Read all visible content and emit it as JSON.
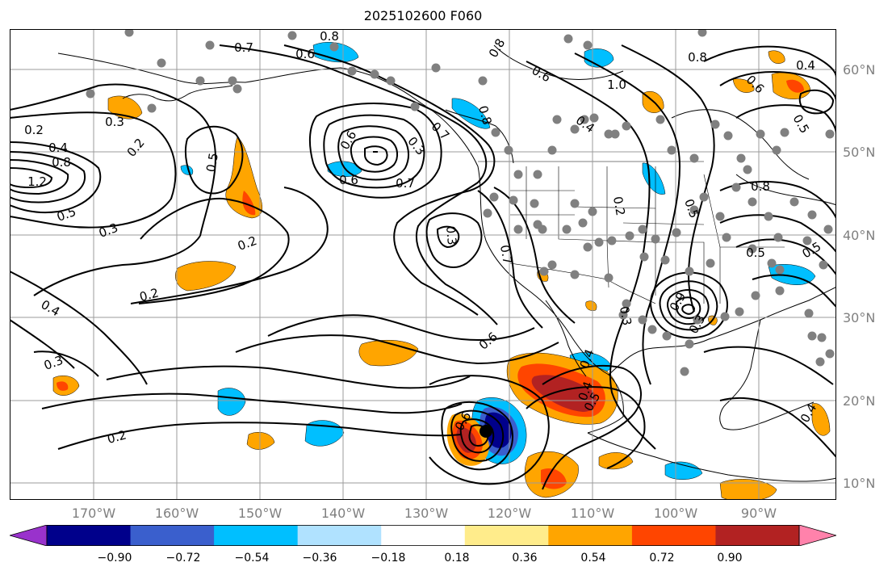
{
  "title": "2025102600 F060",
  "latitude_labels": [
    "60°N",
    "50°N",
    "40°N",
    "30°N",
    "20°N",
    "10°N"
  ],
  "longitude_labels": [
    "170°W",
    "160°W",
    "150°W",
    "140°W",
    "130°W",
    "120°W",
    "110°W",
    "100°W",
    "90°W"
  ],
  "colorbar": {
    "tick_labels": [
      "−0.90",
      "−0.72",
      "−0.54",
      "−0.36",
      "−0.18",
      "0.18",
      "0.36",
      "0.54",
      "0.72",
      "0.90"
    ],
    "colors": [
      "#9932cc",
      "#00008b",
      "#3a5fcd",
      "#00bfff",
      "#b0e2ff",
      "#ffffff",
      "#ffec8b",
      "#ffa500",
      "#ff4500",
      "#b22222",
      "#ff82ab"
    ],
    "extend": "both"
  },
  "contour_labels": [
    "0.8",
    "0.7",
    "0.6",
    "0.8",
    "1.0",
    "0.8",
    "0.4",
    "0.6",
    "0.5",
    "0.2",
    "0.3",
    "0.4",
    "0.2",
    "0.5",
    "0.8",
    "1.2",
    "0.3",
    "0.5",
    "0.6",
    "0.7",
    "0.3",
    "0.6",
    "0.7",
    "0.4",
    "0.2",
    "0.8",
    "0.6",
    "0.2",
    "0.3",
    "0.4",
    "0.2",
    "0.3",
    "0.6",
    "0.3",
    "0.4",
    "0.7",
    "0.5",
    "0.8",
    "0.5",
    "0.9",
    "0.2",
    "0.4",
    "0.4",
    "0.5",
    "0.6",
    "0.5",
    "0.3"
  ],
  "colors": {
    "contour": "#000000",
    "coast": "#000000",
    "grid": "#9b9b9b",
    "station": "#808080",
    "center": "#000000"
  }
}
